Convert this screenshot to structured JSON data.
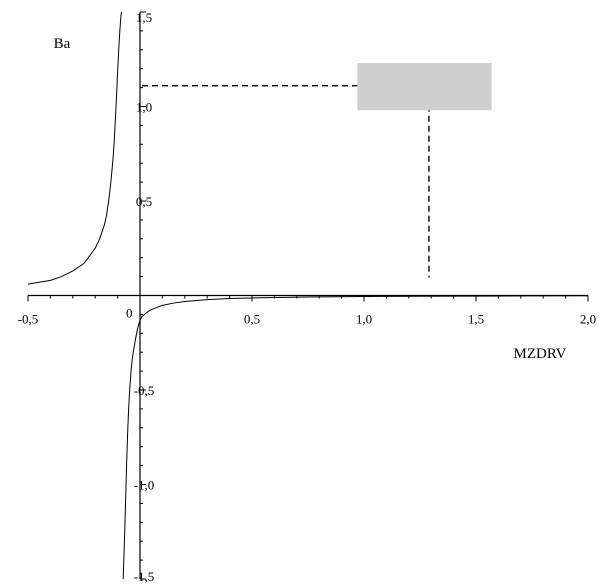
{
  "chart_data": {
    "type": "line",
    "title": "",
    "xlabel": "MZDRV",
    "ylabel": "Ba",
    "xlim": [
      -0.5,
      2.0
    ],
    "ylim": [
      -1.5,
      1.5
    ],
    "x_ticks": [
      {
        "value": -0.5,
        "label": "-0,5"
      },
      {
        "value": 0.5,
        "label": "0,5"
      },
      {
        "value": 1.0,
        "label": "1,0"
      },
      {
        "value": 1.5,
        "label": "1,5"
      },
      {
        "value": 2.0,
        "label": "2,0"
      }
    ],
    "y_ticks": [
      {
        "value": 1.5,
        "label": "1,5"
      },
      {
        "value": 1.0,
        "label": "1,0"
      },
      {
        "value": 0.5,
        "label": "0,5"
      },
      {
        "value": -0.5,
        "label": "-0,5"
      },
      {
        "value": -1.0,
        "label": "-1,0"
      },
      {
        "value": -1.5,
        "label": "-1,5"
      }
    ],
    "origin_label": "0",
    "grid": false,
    "series": [
      {
        "branch": "left",
        "x": [
          -0.5,
          -0.45,
          -0.4,
          -0.35,
          -0.3,
          -0.25,
          -0.2,
          -0.18,
          -0.16,
          -0.15,
          -0.14,
          -0.13,
          -0.12,
          -0.115,
          -0.11,
          -0.105,
          -0.1,
          -0.095,
          -0.09,
          -0.085,
          -0.083
        ],
        "y": [
          0.06,
          0.07,
          0.08,
          0.1,
          0.13,
          0.17,
          0.25,
          0.3,
          0.37,
          0.42,
          0.5,
          0.6,
          0.73,
          0.82,
          0.93,
          1.05,
          1.18,
          1.3,
          1.4,
          1.48,
          1.5
        ]
      },
      {
        "branch": "right",
        "x": [
          -0.075,
          -0.07,
          -0.065,
          -0.06,
          -0.055,
          -0.05,
          -0.045,
          -0.04,
          -0.035,
          -0.03,
          -0.02,
          -0.01,
          0.0,
          0.01,
          0.03,
          0.05,
          0.1,
          0.15,
          0.2,
          0.3,
          0.4,
          0.5,
          0.75,
          1.0,
          1.25,
          1.5,
          1.75,
          2.0
        ],
        "y": [
          -1.5,
          -1.32,
          -1.12,
          -0.9,
          -0.72,
          -0.58,
          -0.48,
          -0.4,
          -0.34,
          -0.3,
          -0.23,
          -0.17,
          -0.13,
          -0.11,
          -0.09,
          -0.075,
          -0.052,
          -0.04,
          -0.032,
          -0.022,
          -0.016,
          -0.013,
          -0.008,
          -0.005,
          -0.004,
          -0.003,
          -0.002,
          -0.001
        ]
      }
    ],
    "annotations": [
      {
        "type": "dashed-guide",
        "x": 1.29,
        "y": 1.11
      },
      {
        "type": "shaded-rectangle",
        "x_range": [
          0.97,
          1.57
        ],
        "y_range": [
          0.98,
          1.23
        ],
        "fill": "#cfcfcf"
      }
    ]
  }
}
